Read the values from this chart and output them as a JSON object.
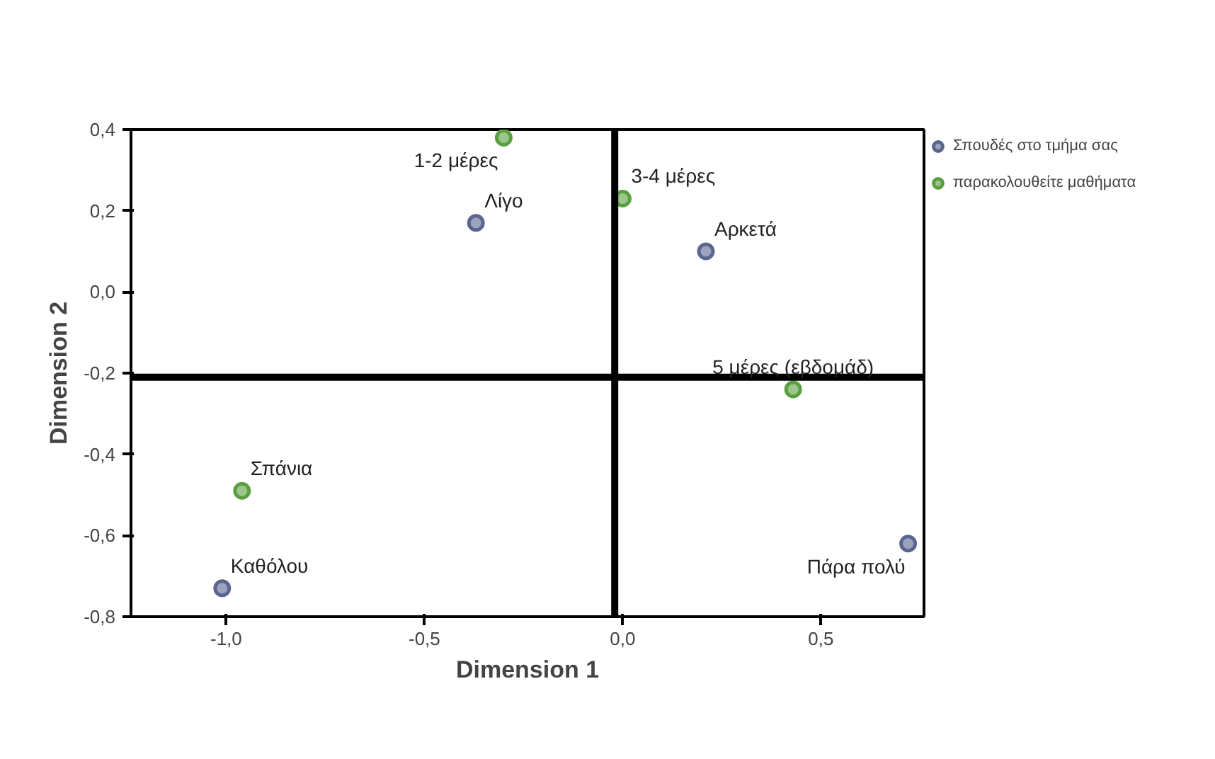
{
  "chart_data": {
    "type": "scatter",
    "xlabel": "Dimension 1",
    "ylabel": "Dimension 2",
    "xlim": [
      -1.24,
      0.76
    ],
    "ylim": [
      -0.8,
      0.4
    ],
    "xticks": [
      {
        "value": -1.0,
        "label": "-1,0"
      },
      {
        "value": -0.5,
        "label": "-0,5"
      },
      {
        "value": 0.0,
        "label": "0,0"
      },
      {
        "value": 0.5,
        "label": "0,5"
      }
    ],
    "yticks": [
      {
        "value": -0.8,
        "label": "-0,8"
      },
      {
        "value": -0.6,
        "label": "-0,6"
      },
      {
        "value": -0.4,
        "label": "-0,4"
      },
      {
        "value": -0.2,
        "label": "-0,2"
      },
      {
        "value": 0.0,
        "label": "0,0"
      },
      {
        "value": 0.2,
        "label": "0,2"
      },
      {
        "value": 0.4,
        "label": "0,4"
      }
    ],
    "grid": false,
    "legend": "top right",
    "marker": "circle",
    "series": [
      {
        "name": "Σπουδές στο τμήμα σας",
        "color": "#5a6590",
        "x": [
          -0.37,
          0.21,
          0.72,
          -1.01
        ],
        "values": [
          0.17,
          0.1,
          -0.62,
          -0.73
        ]
      },
      {
        "name": "παρακολουθείτε μαθήματα",
        "color": "#5aa040",
        "x": [
          -0.3,
          0.0,
          0.43,
          -0.96
        ],
        "values": [
          0.38,
          0.23,
          -0.24,
          -0.49
        ]
      }
    ],
    "annotations": [
      {
        "text": "Λίγο",
        "x": -0.37,
        "y": 0.17
      },
      {
        "text": "Αρκετά",
        "x": 0.21,
        "y": 0.1
      },
      {
        "text": "Πάρα πολύ",
        "x": 0.72,
        "y": -0.62
      },
      {
        "text": "Καθόλου",
        "x": -1.01,
        "y": -0.73
      },
      {
        "text": "1-2 μέρες",
        "x": -0.3,
        "y": 0.38
      },
      {
        "text": "3-4 μέρες",
        "x": 0.0,
        "y": 0.23
      },
      {
        "text": "5 μέρες (εβδομάδ)",
        "x": 0.43,
        "y": -0.24
      },
      {
        "text": "Σπάνια",
        "x": -0.96,
        "y": -0.49
      }
    ],
    "ref_lines": [
      {
        "axis": "y",
        "value": -0.21,
        "color": "#000000"
      },
      {
        "axis": "x",
        "value": -0.02,
        "color": "#000000"
      }
    ]
  }
}
